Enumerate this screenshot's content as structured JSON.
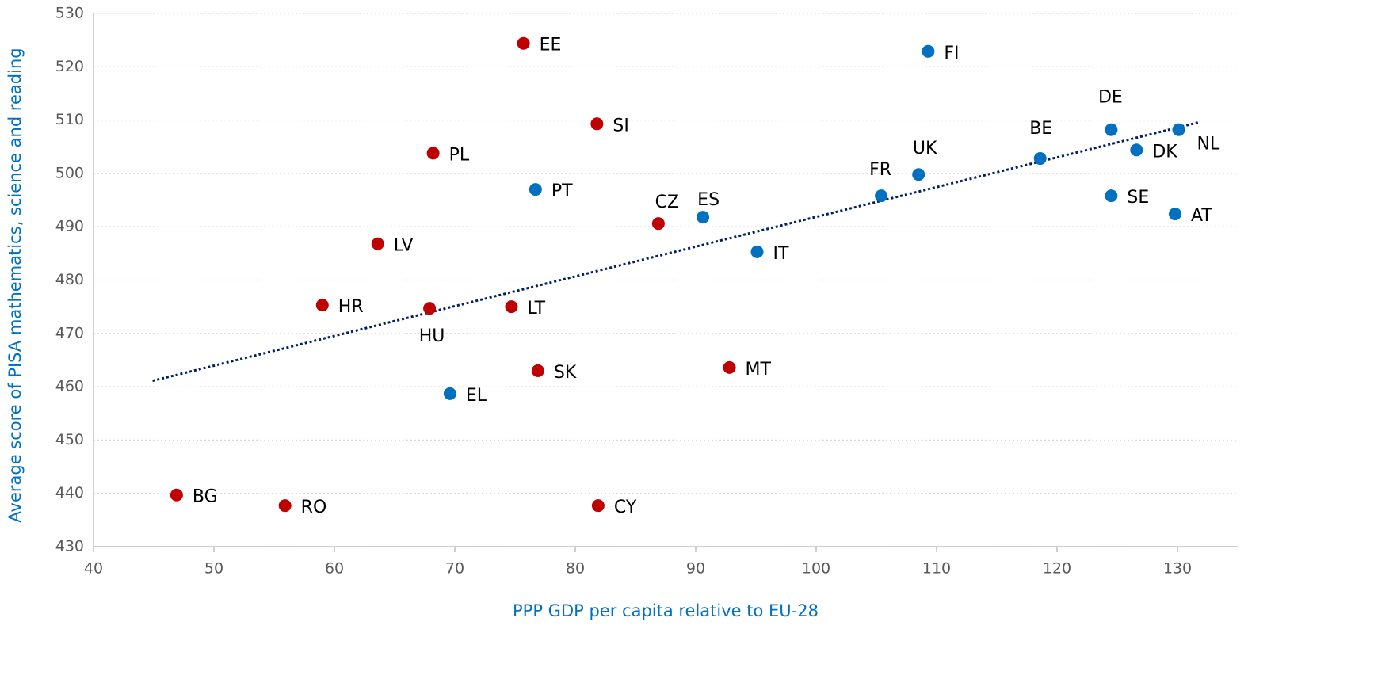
{
  "chart_data": {
    "type": "scatter",
    "xlabel": "PPP GDP per capita relative to EU-28",
    "ylabel": "Average score of PISA mathematics, science and reading",
    "xlim": [
      40,
      135
    ],
    "xticks": [
      40,
      50,
      60,
      70,
      80,
      90,
      100,
      110,
      120,
      130
    ],
    "ylim": [
      430,
      530
    ],
    "yticks": [
      430,
      440,
      450,
      460,
      470,
      480,
      490,
      500,
      510,
      520,
      530
    ],
    "grid": true,
    "points": [
      {
        "label": "EE",
        "x": 75.7,
        "y": 524.4,
        "color": "#c00000"
      },
      {
        "label": "FI",
        "x": 109.3,
        "y": 522.9,
        "color": "#0070c0"
      },
      {
        "label": "SI",
        "x": 81.8,
        "y": 509.3,
        "color": "#c00000"
      },
      {
        "label": "PL",
        "x": 68.2,
        "y": 503.8,
        "color": "#c00000"
      },
      {
        "label": "PT",
        "x": 76.7,
        "y": 497.0,
        "color": "#0070c0"
      },
      {
        "label": "CZ",
        "x": 86.9,
        "y": 490.6,
        "color": "#c00000"
      },
      {
        "label": "ES",
        "x": 90.6,
        "y": 491.8,
        "color": "#0070c0"
      },
      {
        "label": "LV",
        "x": 63.6,
        "y": 486.8,
        "color": "#c00000"
      },
      {
        "label": "IT",
        "x": 95.1,
        "y": 485.3,
        "color": "#0070c0"
      },
      {
        "label": "HR",
        "x": 59.0,
        "y": 475.3,
        "color": "#c00000"
      },
      {
        "label": "HU",
        "x": 67.9,
        "y": 474.7,
        "color": "#c00000"
      },
      {
        "label": "LT",
        "x": 74.7,
        "y": 475.0,
        "color": "#c00000"
      },
      {
        "label": "SK",
        "x": 76.9,
        "y": 463.0,
        "color": "#c00000"
      },
      {
        "label": "MT",
        "x": 92.8,
        "y": 463.6,
        "color": "#c00000"
      },
      {
        "label": "EL",
        "x": 69.6,
        "y": 458.7,
        "color": "#0070c0"
      },
      {
        "label": "BG",
        "x": 46.9,
        "y": 439.7,
        "color": "#c00000"
      },
      {
        "label": "RO",
        "x": 55.9,
        "y": 437.7,
        "color": "#c00000"
      },
      {
        "label": "CY",
        "x": 81.9,
        "y": 437.7,
        "color": "#c00000"
      },
      {
        "label": "FR",
        "x": 105.4,
        "y": 495.8,
        "color": "#0070c0"
      },
      {
        "label": "UK",
        "x": 108.5,
        "y": 499.8,
        "color": "#0070c0"
      },
      {
        "label": "BE",
        "x": 118.6,
        "y": 502.8,
        "color": "#0070c0"
      },
      {
        "label": "DE",
        "x": 124.5,
        "y": 508.2,
        "color": "#0070c0"
      },
      {
        "label": "DK",
        "x": 126.6,
        "y": 504.4,
        "color": "#0070c0"
      },
      {
        "label": "NL",
        "x": 130.1,
        "y": 508.2,
        "color": "#0070c0"
      },
      {
        "label": "SE",
        "x": 124.5,
        "y": 495.8,
        "color": "#0070c0"
      },
      {
        "label": "AT",
        "x": 129.8,
        "y": 492.4,
        "color": "#0070c0"
      }
    ],
    "trendline": {
      "x": [
        44.9,
        131.8
      ],
      "y": [
        461.1,
        509.6
      ],
      "color": "#002060"
    }
  }
}
